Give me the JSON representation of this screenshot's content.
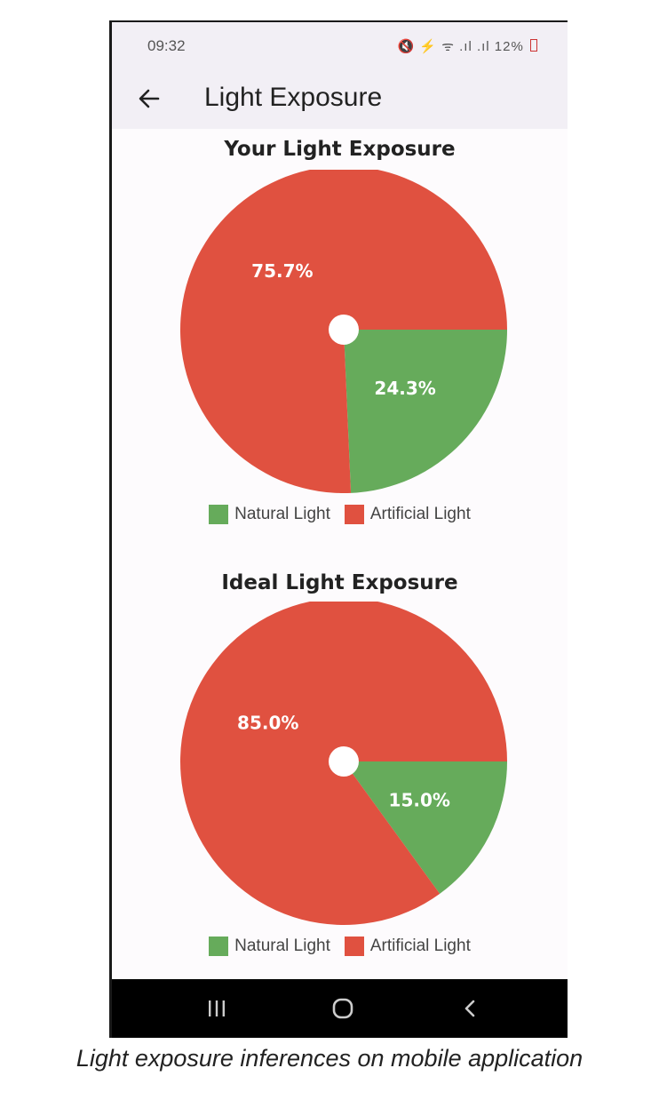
{
  "status_bar": {
    "time": "09:32",
    "icons_text": "🔇 ⚡ ᯤ .ıl .ıl",
    "battery": "12%"
  },
  "app_bar": {
    "back_icon": "arrow-left-icon",
    "title": "Light Exposure"
  },
  "colors": {
    "natural": "#66ab5b",
    "artificial": "#e05140",
    "nav_bar": "#000000"
  },
  "chart_data": [
    {
      "type": "pie",
      "title": "Your Light Exposure",
      "slices": [
        {
          "label": "Natural Light",
          "value": 24.3,
          "display": "24.3%"
        },
        {
          "label": "Artificial Light",
          "value": 75.7,
          "display": "75.7%"
        }
      ],
      "legend": [
        "Natural Light",
        "Artificial Light"
      ],
      "legend_position": "bottom"
    },
    {
      "type": "pie",
      "title": "Ideal Light Exposure",
      "slices": [
        {
          "label": "Natural Light",
          "value": 15.0,
          "display": "15.0%"
        },
        {
          "label": "Artificial Light",
          "value": 85.0,
          "display": "85.0%"
        }
      ],
      "legend": [
        "Natural Light",
        "Artificial Light"
      ],
      "legend_position": "bottom"
    }
  ],
  "nav_bar": {
    "recents_icon": "recents-icon",
    "home_icon": "home-icon",
    "back_icon": "back-chevron-icon"
  },
  "caption": "Light exposure inferences on mobile application"
}
